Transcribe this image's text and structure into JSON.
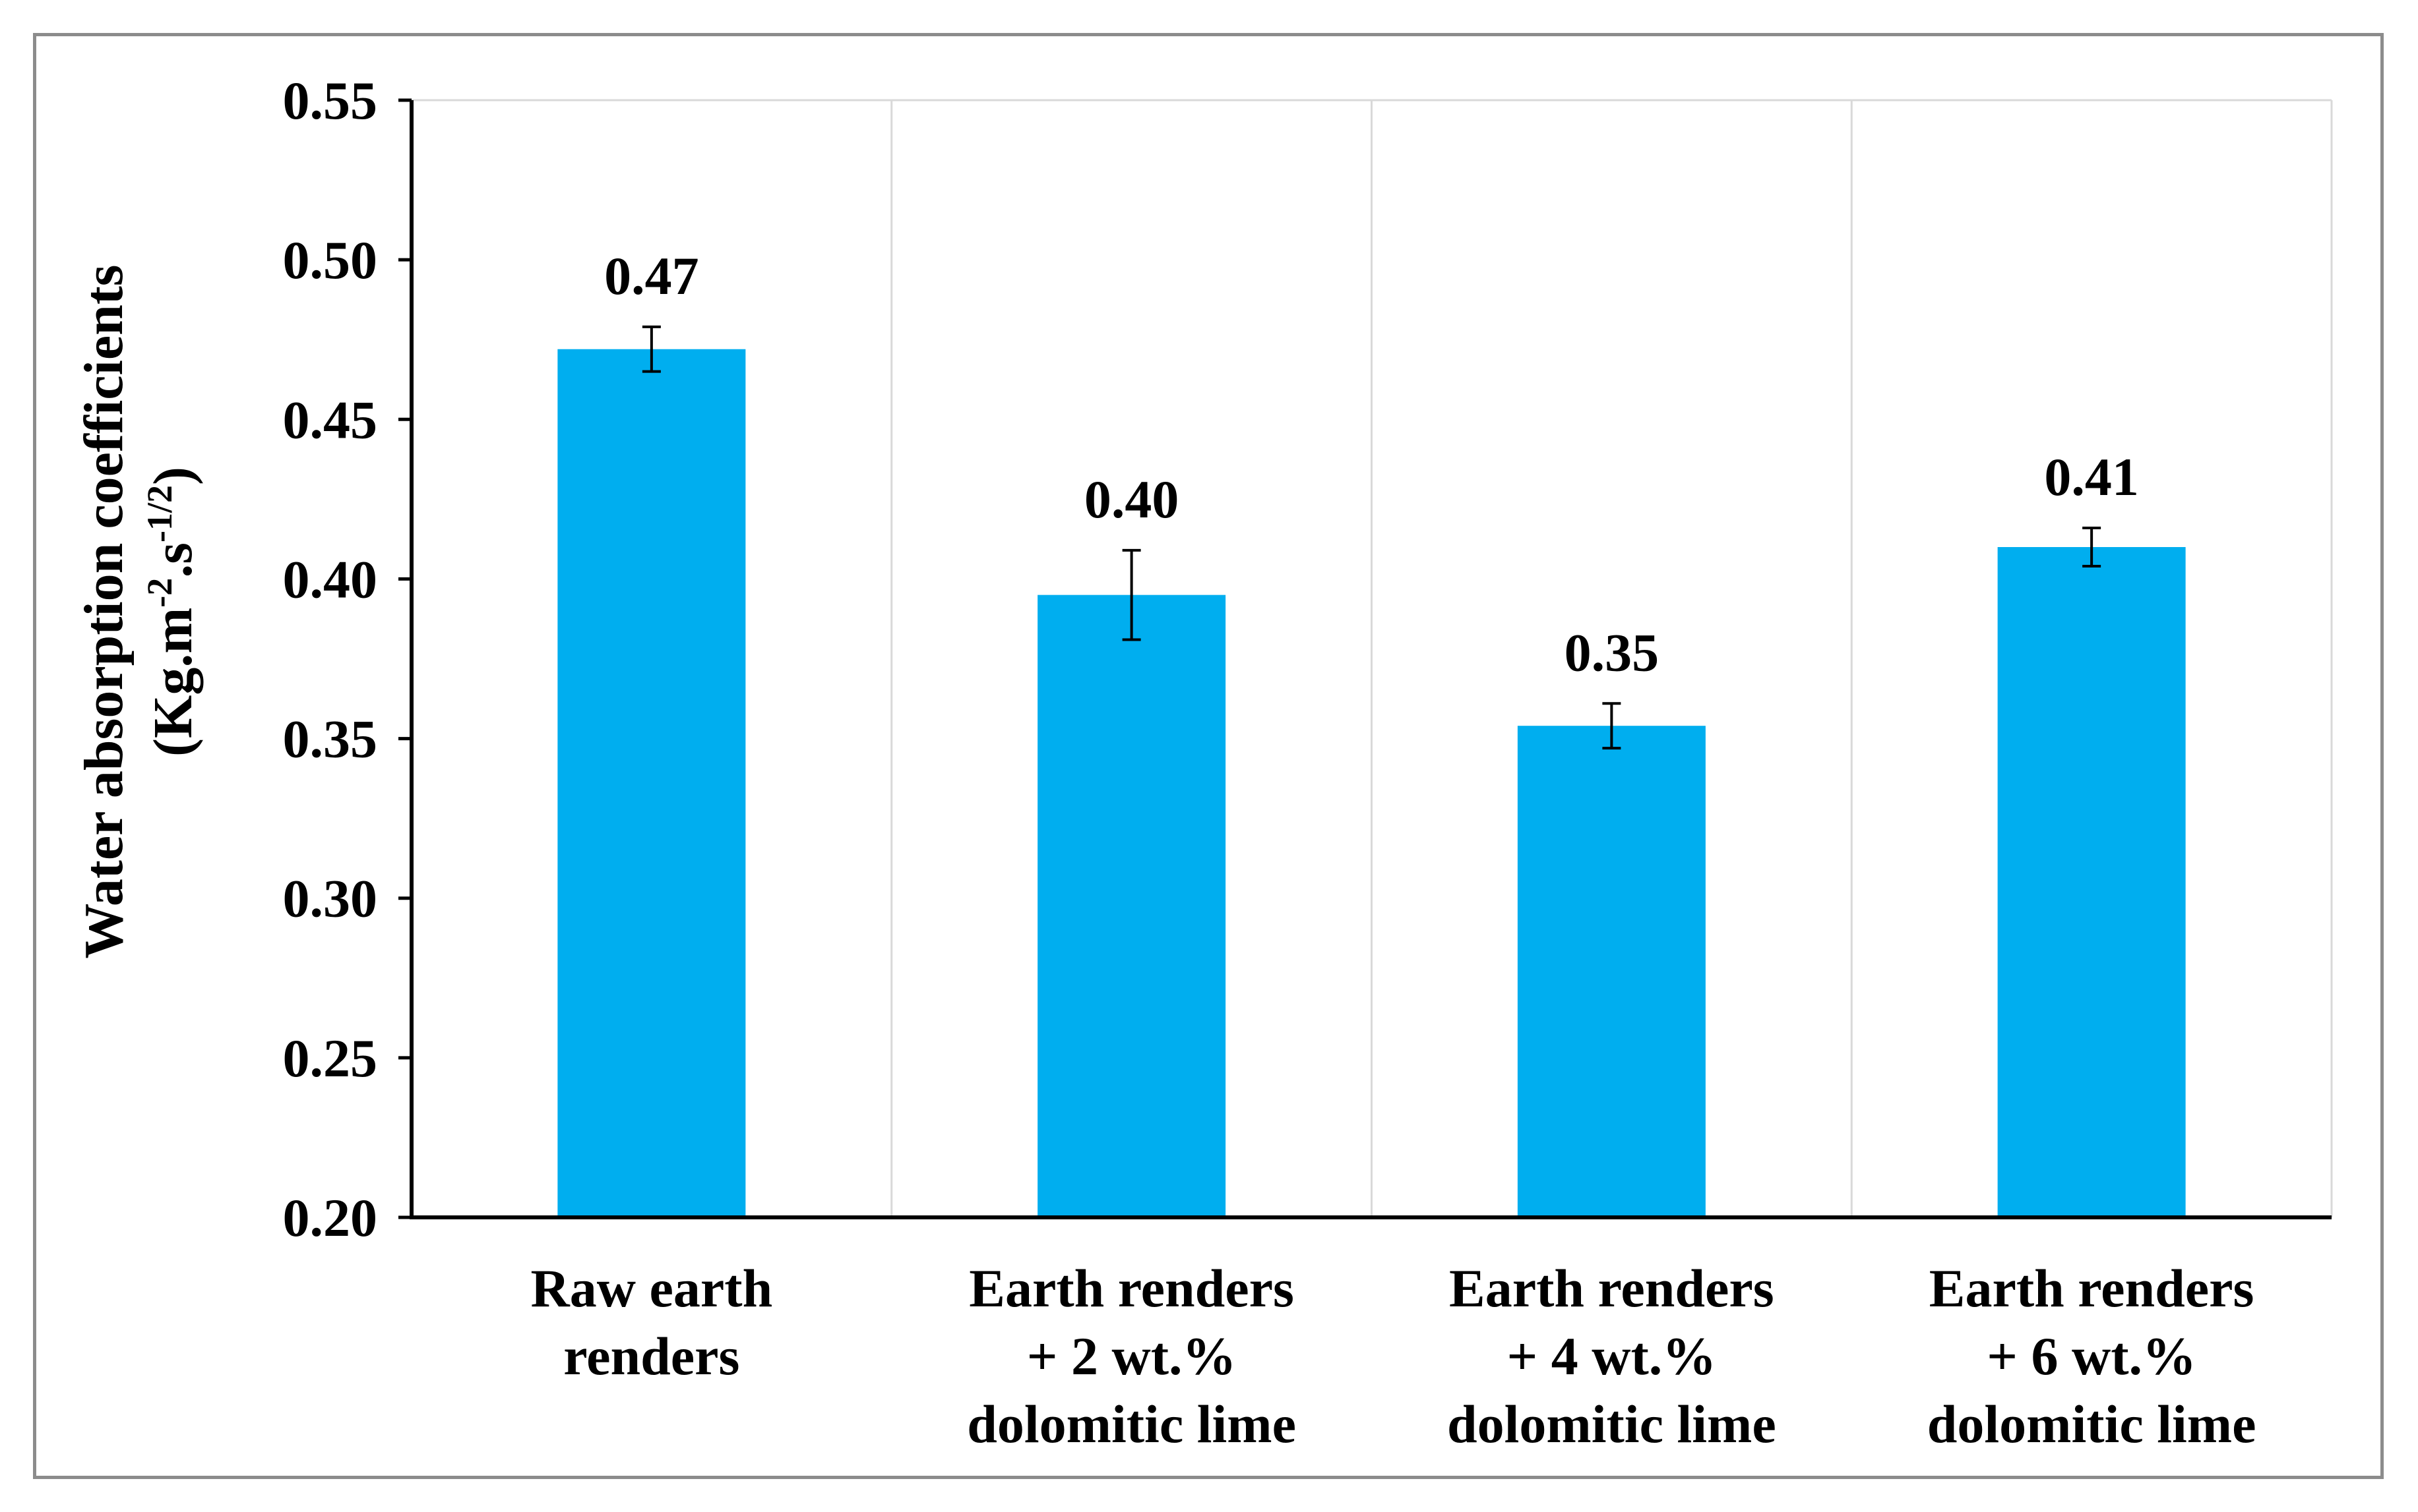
{
  "chart_data": {
    "type": "bar",
    "title": "",
    "xlabel": "",
    "ylabel": "Water absorption coefficients",
    "ylabel_unit": {
      "open": "(Kg.m",
      "exp1": "-2",
      "mid": ".s",
      "exp2": "-1/2",
      "close": ")"
    },
    "categories": [
      [
        "Raw earth",
        "renders"
      ],
      [
        "Earth renders",
        "+ 2 wt.%",
        "dolomitic lime"
      ],
      [
        "Earth renders",
        "+ 4 wt.%",
        "dolomitic lime"
      ],
      [
        "Earth renders",
        "+ 6 wt.%",
        "dolomitic lime"
      ]
    ],
    "values": [
      0.472,
      0.395,
      0.354,
      0.41
    ],
    "errors": [
      0.007,
      0.014,
      0.007,
      0.006
    ],
    "data_labels": [
      "0.47",
      "0.40",
      "0.35",
      "0.41"
    ],
    "ylim": [
      0.2,
      0.55
    ],
    "yticks": [
      "0.20",
      "0.25",
      "0.30",
      "0.35",
      "0.40",
      "0.45",
      "0.50",
      "0.55"
    ],
    "grid": "vertical separators between categories",
    "colors": {
      "bar": "#00aeef",
      "grid": "#d9d9d9",
      "axis": "#000000",
      "frame": "#8c8c8c"
    }
  }
}
